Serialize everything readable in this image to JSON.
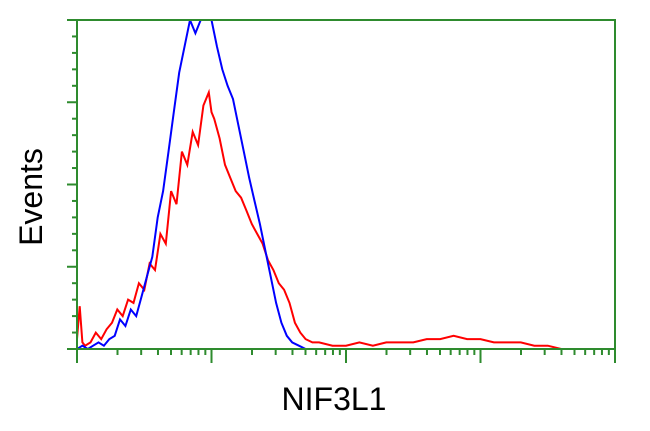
{
  "chart_data": {
    "type": "line",
    "xlabel": "NIF3L1",
    "ylabel": "Events",
    "x_scale": "log",
    "x_decades": 4,
    "grid": false,
    "legend": "none",
    "frame_color": "#2e8b2e",
    "ylim": [
      0,
      100
    ],
    "series": [
      {
        "color": "#ff0000",
        "points": [
          [
            0.0,
            3
          ],
          [
            0.02,
            13
          ],
          [
            0.04,
            2
          ],
          [
            0.06,
            1
          ],
          [
            0.1,
            2
          ],
          [
            0.14,
            5
          ],
          [
            0.18,
            3
          ],
          [
            0.22,
            6
          ],
          [
            0.26,
            8
          ],
          [
            0.3,
            12
          ],
          [
            0.34,
            10
          ],
          [
            0.38,
            15
          ],
          [
            0.42,
            14
          ],
          [
            0.46,
            20
          ],
          [
            0.5,
            18
          ],
          [
            0.54,
            26
          ],
          [
            0.58,
            24
          ],
          [
            0.62,
            35
          ],
          [
            0.66,
            32
          ],
          [
            0.7,
            48
          ],
          [
            0.74,
            44
          ],
          [
            0.78,
            60
          ],
          [
            0.82,
            56
          ],
          [
            0.86,
            66
          ],
          [
            0.9,
            62
          ],
          [
            0.94,
            74
          ],
          [
            0.98,
            78
          ],
          [
            1.0,
            72
          ],
          [
            1.02,
            70
          ],
          [
            1.06,
            64
          ],
          [
            1.1,
            56
          ],
          [
            1.14,
            52
          ],
          [
            1.18,
            48
          ],
          [
            1.22,
            46
          ],
          [
            1.26,
            42
          ],
          [
            1.3,
            38
          ],
          [
            1.34,
            35
          ],
          [
            1.38,
            32
          ],
          [
            1.42,
            27
          ],
          [
            1.46,
            24
          ],
          [
            1.5,
            20
          ],
          [
            1.54,
            18
          ],
          [
            1.58,
            14
          ],
          [
            1.62,
            8
          ],
          [
            1.66,
            5
          ],
          [
            1.7,
            3
          ],
          [
            1.75,
            2
          ],
          [
            1.8,
            2
          ],
          [
            1.9,
            1
          ],
          [
            2.0,
            1
          ],
          [
            2.1,
            2
          ],
          [
            2.2,
            1
          ],
          [
            2.3,
            2
          ],
          [
            2.4,
            2
          ],
          [
            2.5,
            2
          ],
          [
            2.6,
            3
          ],
          [
            2.7,
            3
          ],
          [
            2.8,
            4
          ],
          [
            2.9,
            3
          ],
          [
            3.0,
            3
          ],
          [
            3.1,
            2
          ],
          [
            3.2,
            2
          ],
          [
            3.3,
            2
          ],
          [
            3.4,
            1
          ],
          [
            3.5,
            1
          ],
          [
            3.6,
            0
          ],
          [
            3.8,
            0
          ]
        ]
      },
      {
        "color": "#0000ff",
        "points": [
          [
            0.0,
            0
          ],
          [
            0.04,
            1
          ],
          [
            0.08,
            0
          ],
          [
            0.12,
            1
          ],
          [
            0.16,
            2
          ],
          [
            0.2,
            1
          ],
          [
            0.24,
            3
          ],
          [
            0.28,
            4
          ],
          [
            0.32,
            9
          ],
          [
            0.36,
            7
          ],
          [
            0.4,
            12
          ],
          [
            0.44,
            10
          ],
          [
            0.48,
            16
          ],
          [
            0.52,
            22
          ],
          [
            0.56,
            28
          ],
          [
            0.6,
            40
          ],
          [
            0.64,
            48
          ],
          [
            0.68,
            60
          ],
          [
            0.72,
            72
          ],
          [
            0.76,
            84
          ],
          [
            0.8,
            92
          ],
          [
            0.84,
            100
          ],
          [
            0.88,
            96
          ],
          [
            0.92,
            100
          ],
          [
            0.96,
            100
          ],
          [
            1.0,
            100
          ],
          [
            1.04,
            92
          ],
          [
            1.08,
            85
          ],
          [
            1.12,
            80
          ],
          [
            1.16,
            76
          ],
          [
            1.2,
            68
          ],
          [
            1.24,
            60
          ],
          [
            1.28,
            52
          ],
          [
            1.32,
            45
          ],
          [
            1.36,
            38
          ],
          [
            1.4,
            30
          ],
          [
            1.44,
            22
          ],
          [
            1.48,
            14
          ],
          [
            1.52,
            8
          ],
          [
            1.56,
            4
          ],
          [
            1.6,
            2
          ],
          [
            1.65,
            1
          ],
          [
            1.7,
            0
          ],
          [
            1.8,
            0
          ]
        ]
      }
    ]
  }
}
